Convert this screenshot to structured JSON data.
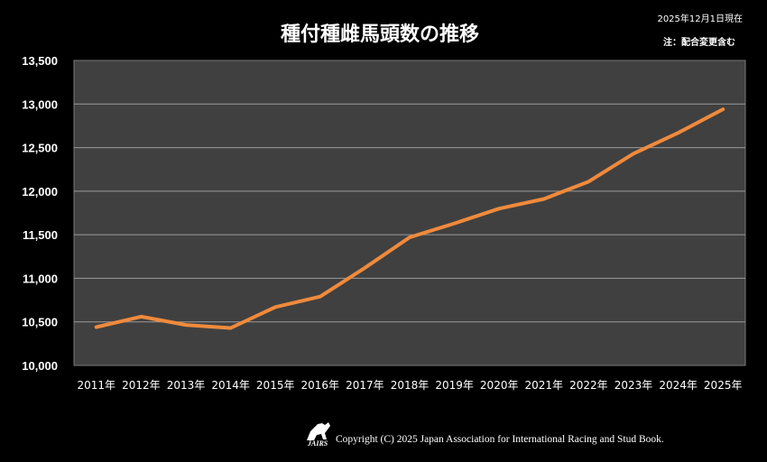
{
  "chart_data": {
    "type": "line",
    "title": "種付種雌馬頭数の推移",
    "as_of": "2025年12月1日現在",
    "note": "注：配合変更含む",
    "categories": [
      "2011年",
      "2012年",
      "2013年",
      "2014年",
      "2015年",
      "2016年",
      "2017年",
      "2018年",
      "2019年",
      "2020年",
      "2021年",
      "2022年",
      "2023年",
      "2024年",
      "2025年"
    ],
    "series": [
      {
        "name": "種付種雌馬頭数",
        "values": [
          10440,
          10560,
          10465,
          10430,
          10670,
          10790,
          11120,
          11470,
          11630,
          11800,
          11910,
          12110,
          12430,
          12670,
          12940
        ]
      }
    ],
    "ylim": [
      10000,
      13500
    ],
    "yticks": [
      10000,
      10500,
      11000,
      11500,
      12000,
      12500,
      13000,
      13500
    ],
    "ytick_labels": [
      "10,000",
      "10,500",
      "11,000",
      "11,500",
      "12,000",
      "12,500",
      "13,000",
      "13,500"
    ],
    "grid": true,
    "colors": {
      "line": "#F08A3C",
      "plot_background": "#404040",
      "grid": "#9a9a9a",
      "background": "#000000"
    }
  },
  "footer": {
    "logo_text": "JAIRS",
    "copyright": "Copyright (C) 2025 Japan Association for International Racing and Stud Book."
  }
}
